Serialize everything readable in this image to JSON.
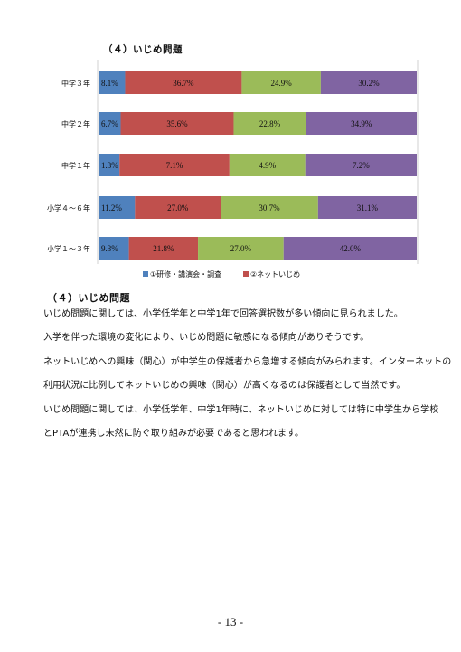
{
  "chart_title": "（４）いじめ問題",
  "section_heading": "（４）いじめ問題",
  "paragraphs": [
    "いじめ問題に関しては、小学低学年と中学1年で回答選択数が多い傾向に見られました。",
    "入学を伴った環境の変化により、いじめ問題に敏感になる傾向がありそうです。",
    "ネットいじめへの興味（関心）が中学生の保護者から急増する傾向がみられます。インターネットの",
    "利用状況に比例してネットいじめの興味（関心）が高くなるのは保護者として当然です。",
    "いじめ問題に関しては、小学低学年、中学1年時に、ネットいじめに対しては特に中学生から学校",
    "とPTAが連携し未然に防ぐ取り組みが必要であると思われます。"
  ],
  "page_number": "- 13 -",
  "chart_data": {
    "type": "bar",
    "orientation": "horizontal",
    "stacked": "100%",
    "title": "（４）いじめ問題",
    "categories": [
      "中学３年",
      "中学２年",
      "中学１年",
      "小学４～６年",
      "小学１～３年"
    ],
    "series": [
      {
        "name": "",
        "color": "#4f81bd",
        "values": [
          8.1,
          6.7,
          1.3,
          11.2,
          9.3
        ],
        "labels": [
          "8.1%",
          "6.7%",
          "1.3%",
          "11.2%",
          "9.3%"
        ]
      },
      {
        "name": "",
        "color": "#c0504d",
        "values": [
          36.7,
          35.6,
          7.1,
          27.0,
          21.8
        ],
        "labels": [
          "36.7%",
          "35.6%",
          "7.1%",
          "27.0%",
          "21.8%"
        ]
      },
      {
        "name": "",
        "color": "#9bbb59",
        "values": [
          24.9,
          22.8,
          4.9,
          30.7,
          27.0
        ],
        "labels": [
          "24.9%",
          "22.8%",
          "4.9%",
          "30.7%",
          "27.0%"
        ]
      },
      {
        "name": "",
        "color": "#8064a2",
        "values": [
          30.2,
          34.9,
          7.2,
          31.1,
          42.0
        ],
        "labels": [
          "30.2%",
          "34.9%",
          "7.2%",
          "31.1%",
          "42.0%"
        ]
      }
    ],
    "legend": {
      "placement": "bottom",
      "visible_entries": [
        {
          "label": "①研修・講演会・調査",
          "color": "#4f81bd"
        },
        {
          "label": "②ネットいじめ",
          "color": "#c0504d"
        }
      ]
    },
    "grid": false
  }
}
